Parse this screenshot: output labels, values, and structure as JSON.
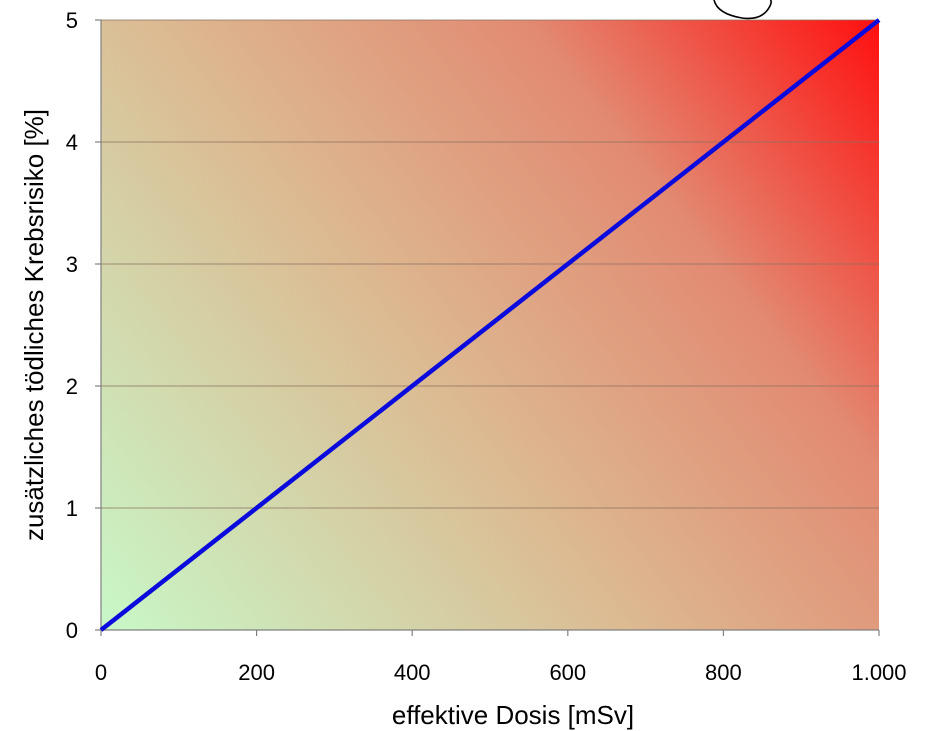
{
  "chart_data": {
    "type": "line",
    "title": "",
    "xlabel": "effektive Dosis [mSv]",
    "ylabel": "zusätzliches tödliches Krebsrisiko [%]",
    "xlim": [
      0,
      1000
    ],
    "ylim": [
      0,
      5
    ],
    "x_ticks": [
      0,
      200,
      400,
      600,
      800,
      1000
    ],
    "x_tick_labels": [
      "0",
      "200",
      "400",
      "600",
      "800",
      "1.000"
    ],
    "y_ticks": [
      0,
      1,
      2,
      3,
      4,
      5
    ],
    "y_tick_labels": [
      "0",
      "1",
      "2",
      "3",
      "4",
      "5"
    ],
    "grid": "horizontal",
    "series": [
      {
        "x": [
          0,
          1000
        ],
        "y": [
          0,
          5
        ],
        "color": "#0a0adc"
      }
    ],
    "background_gradient": {
      "direction": "bottom-left to top-right",
      "colors": [
        "#c8f8c8",
        "#dcba92",
        "#e28a72",
        "#ff0f0f"
      ]
    },
    "annotation": "partial hand-drawn circle at top-right edge"
  }
}
